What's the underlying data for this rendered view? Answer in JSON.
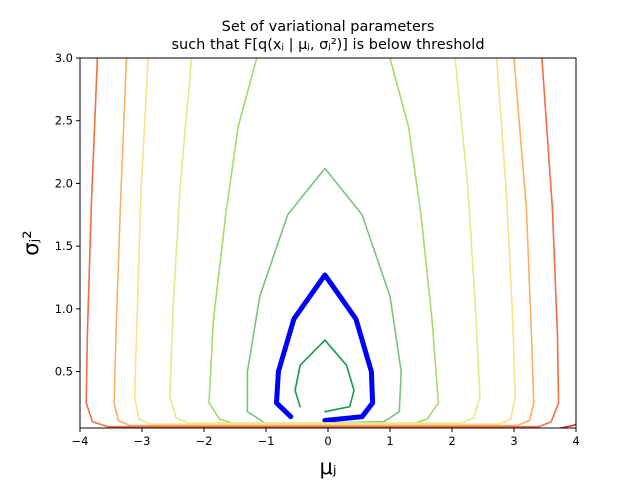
{
  "chart_data": {
    "type": "contour",
    "title": [
      "Set of variational parameters",
      "such that F[q(xⱼ | μⱼ, σⱼ²)] is below threshold"
    ],
    "xlabel": "μⱼ",
    "ylabel": "σⱼ²",
    "xlim": [
      -4,
      4
    ],
    "ylim": [
      0.05,
      3.0
    ],
    "xticks": [
      -4,
      -3,
      -2,
      -1,
      0,
      1,
      2,
      3,
      4
    ],
    "xtick_labels": [
      "−4",
      "−3",
      "−2",
      "−1",
      "0",
      "1",
      "2",
      "3",
      "4"
    ],
    "yticks": [
      0.5,
      1.0,
      1.5,
      2.0,
      2.5,
      3.0
    ],
    "ytick_labels": [
      "0.5",
      "1.0",
      "1.5",
      "2.0",
      "2.5",
      "3.0"
    ],
    "grid": false,
    "contours": [
      {
        "level": 1,
        "color": "#1a9850",
        "width": 1.6,
        "points": [
          [
            -0.05,
            0.18
          ],
          [
            0.35,
            0.22
          ],
          [
            0.42,
            0.35
          ],
          [
            0.3,
            0.55
          ],
          [
            -0.05,
            0.75
          ],
          [
            -0.45,
            0.55
          ],
          [
            -0.53,
            0.35
          ],
          [
            -0.45,
            0.22
          ]
        ]
      },
      {
        "level": 2,
        "color": "#0000ff",
        "width": 5,
        "highlighted": true,
        "points": [
          [
            -0.05,
            0.11
          ],
          [
            0.55,
            0.14
          ],
          [
            0.72,
            0.25
          ],
          [
            0.7,
            0.5
          ],
          [
            0.45,
            0.92
          ],
          [
            -0.05,
            1.27
          ],
          [
            -0.55,
            0.92
          ],
          [
            -0.8,
            0.5
          ],
          [
            -0.83,
            0.25
          ],
          [
            -0.6,
            0.14
          ]
        ]
      },
      {
        "level": 3,
        "color": "#78c679",
        "width": 1.6,
        "points": [
          [
            -0.05,
            0.09
          ],
          [
            0.9,
            0.1
          ],
          [
            1.15,
            0.18
          ],
          [
            1.18,
            0.5
          ],
          [
            1.0,
            1.1
          ],
          [
            0.55,
            1.75
          ],
          [
            -0.05,
            2.12
          ],
          [
            -0.65,
            1.75
          ],
          [
            -1.1,
            1.1
          ],
          [
            -1.3,
            0.5
          ],
          [
            -1.3,
            0.18
          ],
          [
            -1.05,
            0.1
          ]
        ]
      },
      {
        "level": 4,
        "color": "#a6d96a",
        "width": 1.6,
        "points": [
          [
            1.0,
            3.0
          ],
          [
            1.3,
            2.45
          ],
          [
            1.5,
            1.75
          ],
          [
            1.68,
            0.9
          ],
          [
            1.78,
            0.25
          ],
          [
            1.6,
            0.12
          ],
          [
            1.4,
            0.09
          ],
          [
            -1.55,
            0.09
          ],
          [
            -1.75,
            0.12
          ],
          [
            -1.92,
            0.25
          ],
          [
            -1.85,
            0.9
          ],
          [
            -1.65,
            1.75
          ],
          [
            -1.45,
            2.45
          ],
          [
            -1.15,
            3.0
          ]
        ]
      },
      {
        "level": 5,
        "color": "#d9ef8b",
        "width": 1.6,
        "points": [
          [
            2.05,
            3.0
          ],
          [
            2.25,
            2.0
          ],
          [
            2.38,
            1.0
          ],
          [
            2.45,
            0.3
          ],
          [
            2.35,
            0.13
          ],
          [
            2.15,
            0.09
          ],
          [
            -2.25,
            0.09
          ],
          [
            -2.45,
            0.13
          ],
          [
            -2.55,
            0.3
          ],
          [
            -2.5,
            1.0
          ],
          [
            -2.38,
            2.0
          ],
          [
            -2.2,
            3.0
          ]
        ]
      },
      {
        "level": 6,
        "color": "#fee08b",
        "width": 1.6,
        "points": [
          [
            2.72,
            3.0
          ],
          [
            2.88,
            1.9
          ],
          [
            2.98,
            0.9
          ],
          [
            3.02,
            0.3
          ],
          [
            2.95,
            0.12
          ],
          [
            2.75,
            0.08
          ],
          [
            -2.85,
            0.08
          ],
          [
            -3.05,
            0.12
          ],
          [
            -3.12,
            0.3
          ],
          [
            -3.08,
            0.9
          ],
          [
            -3.02,
            1.9
          ],
          [
            -2.9,
            3.0
          ]
        ]
      },
      {
        "level": 7,
        "color": "#fdae61",
        "width": 1.6,
        "points": [
          [
            3.0,
            3.0
          ],
          [
            3.2,
            1.8
          ],
          [
            3.28,
            0.8
          ],
          [
            3.32,
            0.25
          ],
          [
            3.25,
            0.11
          ],
          [
            3.05,
            0.07
          ],
          [
            -3.2,
            0.07
          ],
          [
            -3.38,
            0.11
          ],
          [
            -3.45,
            0.25
          ],
          [
            -3.42,
            0.8
          ],
          [
            -3.35,
            1.8
          ],
          [
            -3.25,
            3.0
          ]
        ]
      },
      {
        "level": 8,
        "color": "#f46d43",
        "width": 1.6,
        "points": [
          [
            3.45,
            3.0
          ],
          [
            3.62,
            1.8
          ],
          [
            3.7,
            0.8
          ],
          [
            3.72,
            0.25
          ],
          [
            3.6,
            0.1
          ],
          [
            3.4,
            0.06
          ],
          [
            -3.55,
            0.06
          ],
          [
            -3.8,
            0.1
          ],
          [
            -3.9,
            0.25
          ],
          [
            -3.88,
            0.8
          ],
          [
            -3.82,
            1.8
          ],
          [
            -3.72,
            3.0
          ]
        ]
      },
      {
        "level": 9,
        "color": "#d73027",
        "width": 1.6,
        "points": [
          [
            3.75,
            0.05
          ],
          [
            3.95,
            0.07
          ],
          [
            4.0,
            0.08
          ]
        ]
      }
    ]
  }
}
